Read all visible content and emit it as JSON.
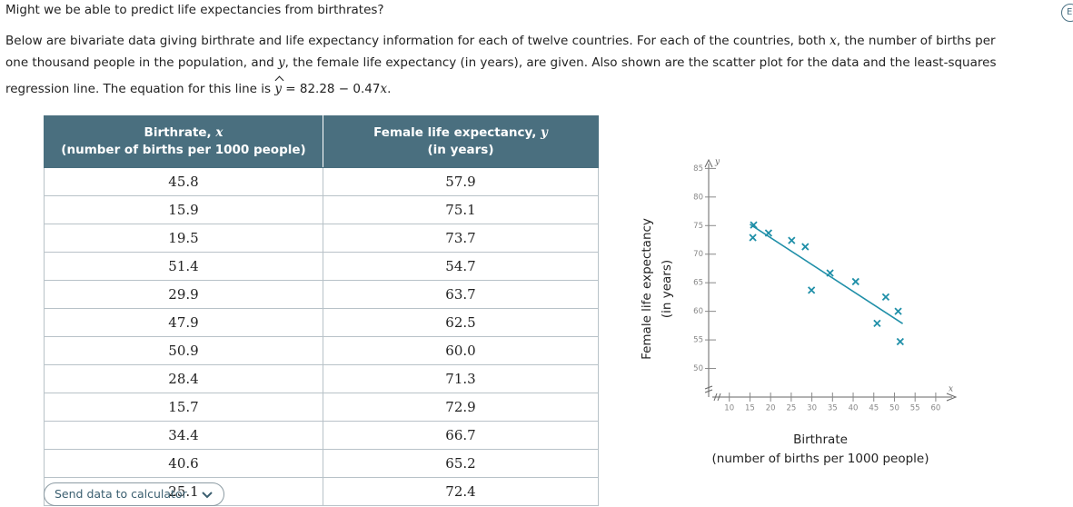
{
  "question": "Might we be able to predict life expectancies from birthrates?",
  "corner_badge": "E",
  "intro": {
    "lines": [
      [
        "Below are bivariate data giving birthrate and life expectancy information for each of twelve countries. For each of the countries, both ",
        "x",
        ", the number of births per"
      ],
      [
        "one thousand people in the population, and ",
        "y",
        ", the female life expectancy (in years), are given. Also shown are the scatter plot for the data and the least-squares"
      ],
      [
        "regression line. The equation for this line is ",
        "y",
        " = 82.28 − 0.47",
        "x",
        "."
      ]
    ]
  },
  "table": {
    "headers": [
      {
        "title": "Birthrate, ",
        "var": "x",
        "sub": "(number of births per 1000 people)"
      },
      {
        "title": "Female life expectancy, ",
        "var": "y",
        "sub": "(in years)"
      }
    ],
    "rows": [
      [
        "45.8",
        "57.9"
      ],
      [
        "15.9",
        "75.1"
      ],
      [
        "19.5",
        "73.7"
      ],
      [
        "51.4",
        "54.7"
      ],
      [
        "29.9",
        "63.7"
      ],
      [
        "47.9",
        "62.5"
      ],
      [
        "50.9",
        "60.0"
      ],
      [
        "28.4",
        "71.3"
      ],
      [
        "15.7",
        "72.9"
      ],
      [
        "34.4",
        "66.7"
      ],
      [
        "40.6",
        "65.2"
      ],
      [
        "25.1",
        "72.4"
      ]
    ]
  },
  "button": "Send data to calculator",
  "chart_data": {
    "type": "scatter",
    "x": [
      45.8,
      15.9,
      19.5,
      51.4,
      29.9,
      47.9,
      50.9,
      28.4,
      15.7,
      34.4,
      40.6,
      25.1
    ],
    "y": [
      57.9,
      75.1,
      73.7,
      54.7,
      63.7,
      62.5,
      60.0,
      71.3,
      72.9,
      66.7,
      65.2,
      72.4
    ],
    "color": "#1f8fa8",
    "regression": {
      "intercept": 82.28,
      "slope": -0.47,
      "x_range": [
        15,
        52
      ]
    },
    "xlim": [
      5,
      62
    ],
    "ylim": [
      45,
      87
    ],
    "xticks": [
      10,
      15,
      20,
      25,
      30,
      35,
      40,
      45,
      50,
      55,
      60
    ],
    "yticks": [
      50,
      55,
      60,
      65,
      70,
      75,
      80,
      85
    ],
    "x_axis_symbol": "x",
    "y_axis_symbol": "y",
    "xlabel": [
      "Birthrate",
      "(number of births per 1000 people)"
    ],
    "ylabel": [
      "Female life expectancy",
      "(in years)"
    ]
  }
}
